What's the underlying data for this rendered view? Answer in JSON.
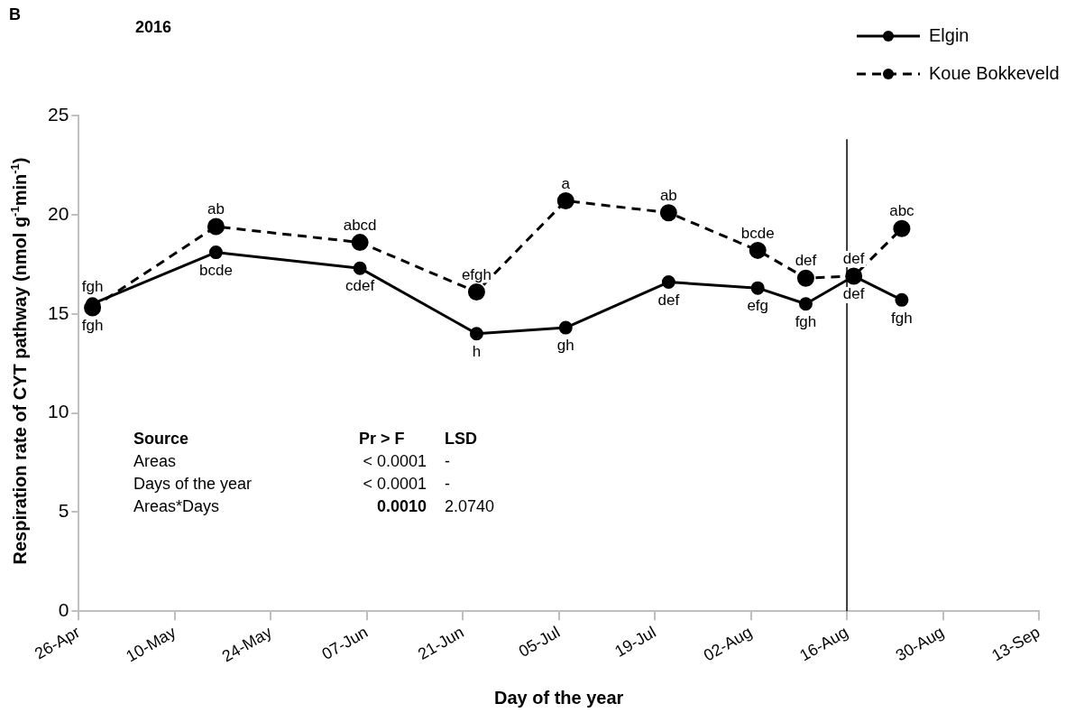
{
  "chart_data": {
    "type": "line",
    "title": "2016",
    "xlabel": "Day of the year",
    "ylabel": "Respiration rate of CYT pathway (nmol g$^{-1}$min$^{-1}$)",
    "x": [
      "2016-04-28",
      "2016-05-16",
      "2016-06-06",
      "2016-06-23",
      "2016-07-06",
      "2016-07-21",
      "2016-08-03",
      "2016-08-10",
      "2016-08-17",
      "2016-08-24"
    ],
    "series": [
      {
        "name": "Elgin",
        "color": "#000000",
        "line_style": "solid",
        "values": [
          15.5,
          18.1,
          17.3,
          14.0,
          14.3,
          16.6,
          16.3,
          15.5,
          16.9,
          15.7
        ]
      },
      {
        "name": "Koue Bokkeveld",
        "color": "#000000",
        "line_style": "dashed",
        "values": [
          15.3,
          19.4,
          18.6,
          16.1,
          20.7,
          20.1,
          18.2,
          16.8,
          16.9,
          19.3
        ]
      }
    ],
    "marker": "circle",
    "grid": false,
    "legend": "top right",
    "xlim": [
      "2016-04-26",
      "2016-09-13"
    ],
    "xticks": [
      {
        "value": "2016-04-26",
        "label": "26-Apr"
      },
      {
        "value": "2016-05-10",
        "label": "10-May"
      },
      {
        "value": "2016-05-24",
        "label": "24-May"
      },
      {
        "value": "2016-06-07",
        "label": "07-Jun"
      },
      {
        "value": "2016-06-21",
        "label": "21-Jun"
      },
      {
        "value": "2016-07-05",
        "label": "05-Jul"
      },
      {
        "value": "2016-07-19",
        "label": "19-Jul"
      },
      {
        "value": "2016-08-02",
        "label": "02-Aug"
      },
      {
        "value": "2016-08-16",
        "label": "16-Aug"
      },
      {
        "value": "2016-08-30",
        "label": "30-Aug"
      },
      {
        "value": "2016-09-13",
        "label": "13-Sep"
      }
    ],
    "ylim": [
      0,
      25
    ],
    "yticks": [
      0,
      5,
      10,
      15,
      20,
      25
    ],
    "ref_lines": [
      {
        "axis": "x",
        "value": "2016-08-16",
        "color": "#000000",
        "line_style": "solid"
      }
    ],
    "annotations": [
      {
        "text": "fgh",
        "x": "2016-04-28",
        "y": 15.5
      },
      {
        "text": "bcde",
        "x": "2016-05-16",
        "y": 18.1
      },
      {
        "text": "cdef",
        "x": "2016-06-06",
        "y": 17.3
      },
      {
        "text": "h",
        "x": "2016-06-23",
        "y": 14.0
      },
      {
        "text": "gh",
        "x": "2016-07-06",
        "y": 14.3
      },
      {
        "text": "def",
        "x": "2016-07-21",
        "y": 16.6
      },
      {
        "text": "efg",
        "x": "2016-08-03",
        "y": 16.3
      },
      {
        "text": "fgh",
        "x": "2016-08-10",
        "y": 15.5
      },
      {
        "text": "def",
        "x": "2016-08-17",
        "y": 16.9
      },
      {
        "text": "fgh",
        "x": "2016-08-24",
        "y": 15.7
      },
      {
        "text": "fgh",
        "x": "2016-04-28",
        "y": 15.3
      },
      {
        "text": "ab",
        "x": "2016-05-16",
        "y": 19.4
      },
      {
        "text": "abcd",
        "x": "2016-06-06",
        "y": 18.6
      },
      {
        "text": "efgh",
        "x": "2016-06-23",
        "y": 16.1
      },
      {
        "text": "a",
        "x": "2016-07-06",
        "y": 20.7
      },
      {
        "text": "ab",
        "x": "2016-07-21",
        "y": 20.1
      },
      {
        "text": "bcde",
        "x": "2016-08-03",
        "y": 18.2
      },
      {
        "text": "def",
        "x": "2016-08-10",
        "y": 16.8
      },
      {
        "text": "def",
        "x": "2016-08-17",
        "y": 16.9
      },
      {
        "text": "abc",
        "x": "2016-08-24",
        "y": 19.3
      },
      "B",
      "Source",
      "Pr > F",
      "LSD",
      "Areas",
      "< 0.0001",
      "-",
      "Days of the year",
      "< 0.0001",
      "-",
      "Areas*Days",
      "0.0010",
      "2.0740"
    ]
  }
}
